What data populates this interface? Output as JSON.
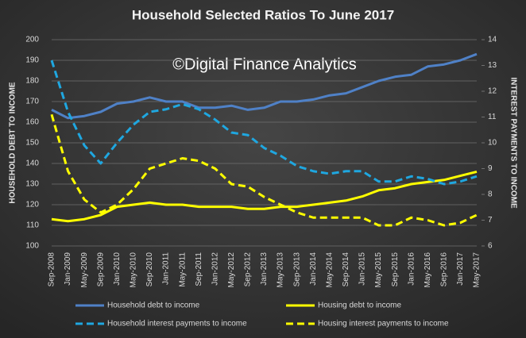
{
  "chart_data": {
    "type": "line",
    "title": "Household Selected Ratios To June 2017",
    "watermark": "©Digital Finance Analytics",
    "y_label": "HOUSEHOLD DEBT TO INCOME",
    "y2_label": "INTEREST PAYMENTS TO INCOME",
    "categories": [
      "Sep-2008",
      "Jan-2009",
      "May-2009",
      "Sep-2009",
      "Jan-2010",
      "May-2010",
      "Sep-2010",
      "Jan-2011",
      "May-2011",
      "Sep-2011",
      "Jan-2012",
      "May-2012",
      "Sep-2012",
      "Jan-2013",
      "May-2013",
      "Sep-2013",
      "Jan-2014",
      "May-2014",
      "Sep-2014",
      "Jan-2015",
      "May-2015",
      "Sep-2015",
      "Jan-2016",
      "May-2016",
      "Sep-2016",
      "Jan-2017",
      "May-2017"
    ],
    "ylim": [
      100,
      200
    ],
    "yticks": [
      100,
      110,
      120,
      130,
      140,
      150,
      160,
      170,
      180,
      190,
      200
    ],
    "y2lim": [
      6,
      14
    ],
    "y2ticks": [
      6,
      7,
      8,
      9,
      10,
      11,
      12,
      13,
      14
    ],
    "grid": true,
    "legend": "bottom",
    "series": [
      {
        "name": "Household debt to income",
        "color": "#4f81c7",
        "style": "solid",
        "values": [
          166,
          162,
          163,
          165,
          169,
          170,
          172,
          170,
          170,
          167,
          167,
          168,
          166,
          167,
          170,
          170,
          171,
          173,
          174,
          177,
          180,
          182,
          183,
          187,
          188,
          190,
          193
        ]
      },
      {
        "name": "Housing debt to income",
        "color": "#ffff00",
        "style": "solid",
        "values": [
          113,
          112,
          113,
          115,
          119,
          120,
          121,
          120,
          120,
          119,
          119,
          119,
          118,
          118,
          119,
          119,
          120,
          121,
          122,
          124,
          127,
          128,
          130,
          131,
          132,
          134,
          136
        ]
      },
      {
        "name": "Household interest payments to income",
        "color": "#1fa7e0",
        "style": "dashed",
        "axis": "y2",
        "values": [
          13.2,
          11.2,
          9.9,
          9.2,
          10.0,
          10.7,
          11.2,
          11.3,
          11.5,
          11.3,
          10.9,
          10.4,
          10.3,
          9.8,
          9.5,
          9.1,
          8.9,
          8.8,
          8.9,
          8.9,
          8.5,
          8.5,
          8.7,
          8.6,
          8.4,
          8.5,
          8.7
        ]
      },
      {
        "name": "Housing interest payments to income",
        "color": "#ffff00",
        "style": "dashed",
        "axis": "y2",
        "values": [
          11.1,
          8.9,
          7.8,
          7.3,
          7.6,
          8.2,
          9.0,
          9.2,
          9.4,
          9.3,
          9.0,
          8.4,
          8.3,
          7.9,
          7.6,
          7.3,
          7.1,
          7.1,
          7.1,
          7.1,
          6.8,
          6.8,
          7.1,
          7.0,
          6.8,
          6.9,
          7.2
        ]
      }
    ]
  }
}
